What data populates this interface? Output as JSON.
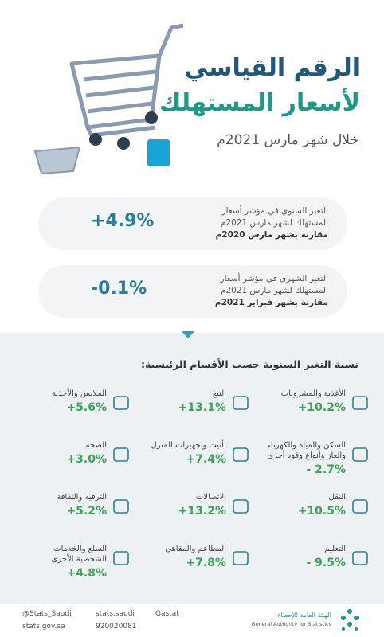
{
  "header": {
    "title_line1": "الرقم القياسي",
    "title_line2": "لأسعار المستهلك",
    "subtitle": "خلال شهر مارس 2021م"
  },
  "summary": [
    {
      "text_line1": "التغير السنوي في مؤشر أسعار",
      "text_line2": "المستهلك لشهر مارس 2021م",
      "text_line3": "مقارنة بشهر مارس 2020م",
      "value": "+4.9%"
    },
    {
      "text_line1": "التغير الشهري في مؤشر أسعار",
      "text_line2": "المستهلك لشهر مارس 2021م",
      "text_line3": "مقارنة بشهر فبراير 2021م",
      "value": "-0.1%"
    }
  ],
  "section": {
    "title": "نسبة التغير السنوية حسب الأقسام الرئيسية:",
    "items": [
      {
        "label": "الأغذية والمشروبات",
        "value": "+10.2%"
      },
      {
        "label": "التبغ",
        "value": "+13.1%"
      },
      {
        "label": "الملابس والأحذية",
        "value": "+5.6%"
      },
      {
        "label": "السكن والمياه والكهرباء والغاز وأنواع وقود أخرى",
        "value": "- 2.7%"
      },
      {
        "label": "تأثيث وتجهيزات المنزل",
        "value": "+7.4%"
      },
      {
        "label": "الصحة",
        "value": "+3.0%"
      },
      {
        "label": "النقل",
        "value": "+10.5%"
      },
      {
        "label": "الاتصالات",
        "value": "+13.2%"
      },
      {
        "label": "الترفيه والثقافة",
        "value": "+5.2%"
      },
      {
        "label": "التعليم",
        "value": "- 9.5%"
      },
      {
        "label": "المطاعم والمقاهي",
        "value": "+7.8%"
      },
      {
        "label": "السلع والخدمات الشخصية الأخرى",
        "value": "+4.8%"
      }
    ]
  },
  "footer": {
    "twitter": "@Stats_Saudi",
    "facebook": "stats.saudi",
    "snap": "Gastat",
    "web": "stats.gov.sa",
    "phone": "920020081",
    "org_ar": "الهيئة العامة للإحصاء",
    "org_en": "General Authority for Statistics"
  }
}
